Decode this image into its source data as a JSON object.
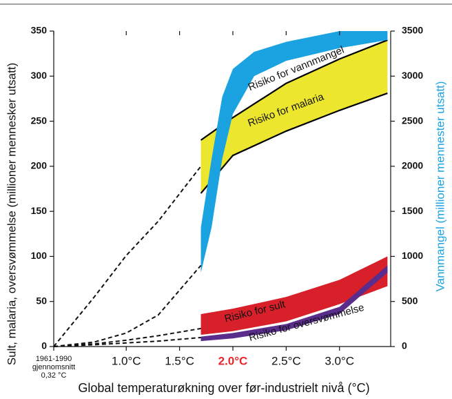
{
  "chart_data": {
    "type": "band",
    "xlabel": "Global temperaturøkning over før-industrielt nivå (°C)",
    "ylabel": "Sult, malaria, oversvømmelse (millioner mennesker utsatt)",
    "y2label": "Vannmangel (millioner mennester utsatt)",
    "y2label_color": "#1aa3e0",
    "xlim": [
      0.32,
      3.48
    ],
    "xticks": [
      {
        "value": 0.32,
        "label": "1961-1990\ngjennomsnitt\n0,32 °C"
      },
      {
        "value": 1,
        "label": "1.0°C"
      },
      {
        "value": 1.5,
        "label": "1.5°C"
      },
      {
        "value": 2,
        "label": "2.0°C",
        "color": "#e8262b"
      },
      {
        "value": 2.5,
        "label": "2.5°C"
      },
      {
        "value": 3,
        "label": "3.0°C"
      }
    ],
    "ylim": [
      0,
      350
    ],
    "yticks": [
      0,
      50,
      100,
      150,
      200,
      250,
      300,
      350
    ],
    "y2lim": [
      0,
      3500
    ],
    "y2ticks": [
      0,
      500,
      1000,
      1500,
      2000,
      2500,
      3000,
      3500
    ],
    "series": [
      {
        "name": "Risiko for malaria",
        "color": "#ede62e",
        "edge_color": "#000000",
        "x": [
          1.7,
          2.0,
          2.5,
          3.0,
          3.45
        ],
        "lower": [
          170,
          212,
          239,
          262,
          281
        ],
        "upper": [
          229,
          254,
          292,
          319,
          340
        ],
        "trend_x": [
          0.32,
          0.7,
          1.0,
          1.3,
          1.7
        ],
        "trend": [
          0,
          55,
          101,
          139,
          200
        ]
      },
      {
        "name": "Risiko for vannmangel",
        "color": "#1aa3e0",
        "axis": "y2",
        "x": [
          1.7,
          1.8,
          1.9,
          2.0,
          2.2,
          2.5,
          3.0,
          3.45
        ],
        "lower": [
          820,
          1320,
          2080,
          2580,
          3000,
          3170,
          3310,
          3400
        ],
        "upper": [
          1320,
          2080,
          2770,
          3080,
          3270,
          3380,
          3500,
          3500
        ],
        "trend_x": [
          0.32,
          0.7,
          1.0,
          1.3,
          1.7
        ],
        "trend": [
          0,
          50,
          150,
          350,
          900
        ]
      },
      {
        "name": "Risiko for sult",
        "color": "#d8202a",
        "x": [
          1.7,
          2.0,
          2.5,
          3.0,
          3.45
        ],
        "lower": [
          13,
          17,
          28,
          47,
          67
        ],
        "upper": [
          36,
          42,
          55,
          74,
          100
        ],
        "trend_x": [
          0.32,
          0.7,
          1.0,
          1.3,
          1.7
        ],
        "trend": [
          0,
          3,
          7,
          12,
          20
        ]
      },
      {
        "name": "Risiko for oversvømmelse",
        "color": "#5a2d8c",
        "x": [
          1.7,
          2.0,
          2.5,
          3.0,
          3.45
        ],
        "lower": [
          6,
          9,
          18,
          36,
          82
        ],
        "upper": [
          11,
          15,
          25,
          44,
          90
        ],
        "trend_x": [
          0.32,
          0.7,
          1.0,
          1.3,
          1.7
        ],
        "trend": [
          0,
          2,
          4,
          6,
          10
        ]
      }
    ]
  }
}
